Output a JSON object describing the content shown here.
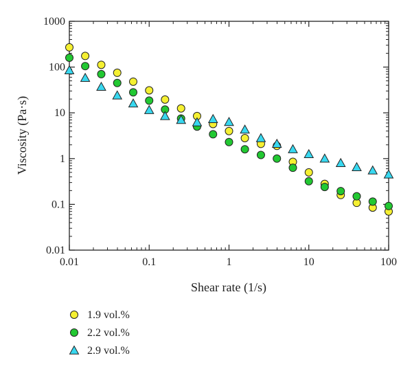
{
  "chart_data": {
    "type": "scatter",
    "title": "",
    "xlabel": "Shear rate (1/s)",
    "ylabel": "Viscosity (Pa·s)",
    "xscale": "log",
    "yscale": "log",
    "xlim": [
      0.01,
      100
    ],
    "ylim": [
      0.01,
      1000
    ],
    "xticks": [
      0.01,
      0.1,
      1,
      10,
      100
    ],
    "xtick_labels": [
      "0.01",
      "0.1",
      "1",
      "10",
      "100"
    ],
    "yticks": [
      0.01,
      0.1,
      1,
      10,
      100,
      1000
    ],
    "ytick_labels": [
      "0.01",
      "0.1",
      "1",
      "10",
      "100",
      "1000"
    ],
    "grid": false,
    "legend_position": "below",
    "x": [
      0.01,
      0.0158,
      0.0251,
      0.0398,
      0.0631,
      0.1,
      0.158,
      0.251,
      0.398,
      0.631,
      1,
      1.58,
      2.51,
      3.98,
      6.31,
      10,
      15.8,
      25.1,
      39.8,
      63.1,
      100
    ],
    "series": [
      {
        "name": "1.9 vol.%",
        "marker": "circle",
        "color": "#f5f032",
        "values": [
          270,
          175,
          112,
          75,
          48,
          31,
          19.5,
          12.5,
          8.5,
          5.7,
          4.0,
          2.8,
          2.1,
          1.9,
          0.85,
          0.5,
          0.28,
          0.16,
          0.108,
          0.085,
          0.07
        ]
      },
      {
        "name": "2.2 vol.%",
        "marker": "circle",
        "color": "#22c832",
        "values": [
          160,
          105,
          70,
          45,
          28,
          18.5,
          11.8,
          7.5,
          5.0,
          3.4,
          2.3,
          1.6,
          1.2,
          1.0,
          0.63,
          0.32,
          0.24,
          0.195,
          0.15,
          0.115,
          0.092
        ]
      },
      {
        "name": "2.9 vol.%",
        "marker": "triangle",
        "color": "#38d8f0",
        "values": [
          85,
          58,
          37,
          24,
          16,
          11.5,
          8.5,
          7.0,
          6.2,
          7.3,
          6.3,
          4.3,
          2.8,
          2.1,
          1.6,
          1.25,
          1.0,
          0.8,
          0.65,
          0.55,
          0.45
        ]
      }
    ]
  }
}
